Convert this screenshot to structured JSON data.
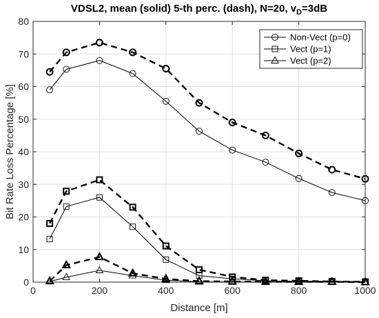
{
  "chart_data": {
    "type": "line",
    "title_main": "VDSL2, mean (solid) 5-th perc. (dash), N=20, v",
    "title_sub": "D",
    "title_tail": "=3dB",
    "xlabel": "Distance [m]",
    "ylabel": "Bit Rate Loss Percentage [%]",
    "xlim": [
      0,
      1000
    ],
    "ylim": [
      0,
      80
    ],
    "xticks": [
      0,
      200,
      400,
      600,
      800,
      1000
    ],
    "yticks": [
      0,
      10,
      20,
      30,
      40,
      50,
      60,
      70,
      80
    ],
    "grid": true,
    "legend_position": "top-right",
    "color": "#000000",
    "x": [
      50,
      100,
      200,
      300,
      400,
      500,
      600,
      700,
      800,
      900,
      1000
    ],
    "series": [
      {
        "name": "Non-Vect (p=0)",
        "marker": "circle",
        "style": "solid",
        "values": [
          59,
          65.3,
          68,
          64,
          55.5,
          46.3,
          40.5,
          36.8,
          31.8,
          27.5,
          25
        ]
      },
      {
        "name": "Non-Vect (p=0)",
        "marker": "circle",
        "style": "dash",
        "values": [
          64.5,
          70.5,
          73.5,
          70.5,
          65.5,
          55,
          49,
          45,
          39.5,
          34.5,
          31.7
        ]
      },
      {
        "name": "Vect (p=1)",
        "marker": "square",
        "style": "solid",
        "values": [
          13.2,
          23.2,
          26,
          17,
          6.9,
          2,
          1,
          0.4,
          0.2,
          0.1,
          0.1
        ]
      },
      {
        "name": "Vect (p=1)",
        "marker": "square",
        "style": "dash",
        "values": [
          18,
          27.9,
          31.4,
          23,
          11.1,
          3.8,
          1.6,
          0.6,
          0.4,
          0.2,
          0.1
        ]
      },
      {
        "name": "Vect (p=2)",
        "marker": "triangle",
        "style": "solid",
        "values": [
          0.2,
          1.5,
          3.6,
          2,
          0.6,
          0.1,
          0.05,
          0.05,
          0.05,
          0,
          0
        ]
      },
      {
        "name": "Vect (p=2)",
        "marker": "triangle",
        "style": "dash",
        "values": [
          0.3,
          5.2,
          7.7,
          2.7,
          1,
          0.3,
          0.2,
          0.1,
          0.1,
          0.1,
          0
        ]
      }
    ],
    "legend": [
      {
        "label": "Non-Vect (p=0)",
        "marker": "circle"
      },
      {
        "label": "Vect (p=1)",
        "marker": "square"
      },
      {
        "label": "Vect (p=2)",
        "marker": "triangle"
      }
    ]
  }
}
